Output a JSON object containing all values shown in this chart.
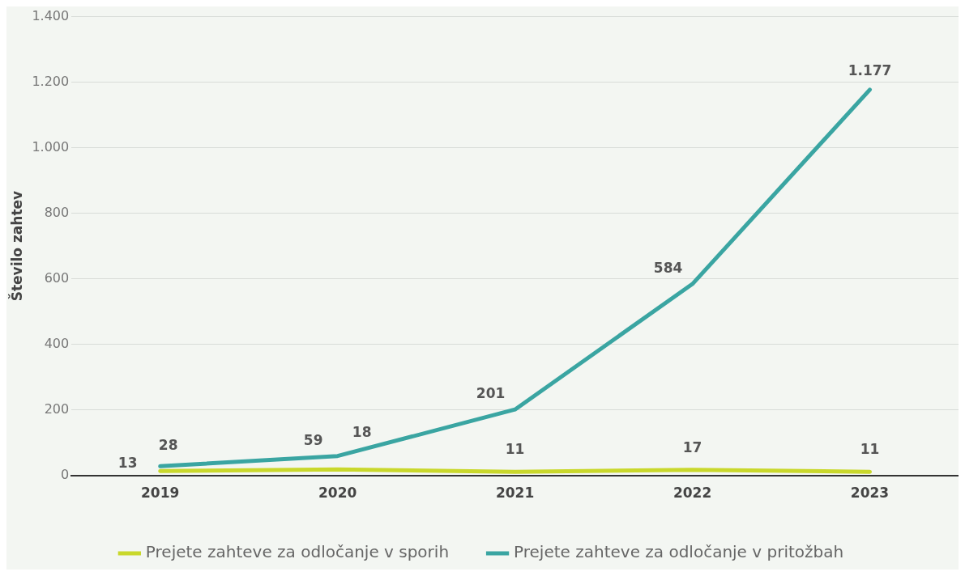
{
  "chart_data": {
    "type": "line",
    "ylabel": "Število zahtev",
    "categories": [
      "2019",
      "2020",
      "2021",
      "2022",
      "2023"
    ],
    "series": [
      {
        "name": "Prejete zahteve za odločanje v sporih",
        "color": "#c9d82c",
        "values": [
          13,
          18,
          11,
          17,
          11
        ],
        "value_labels": [
          "13",
          "18",
          "11",
          "17",
          "11"
        ]
      },
      {
        "name": "Prejete zahteve za odločanje v pritožbah",
        "color": "#3aa5a2",
        "values": [
          28,
          59,
          201,
          584,
          1177
        ],
        "value_labels": [
          "28",
          "59",
          "201",
          "584",
          "1.177"
        ]
      }
    ],
    "ylim": [
      0,
      1400
    ],
    "yticks": [
      {
        "value": 0,
        "label": "0"
      },
      {
        "value": 200,
        "label": "200"
      },
      {
        "value": 400,
        "label": "400"
      },
      {
        "value": 600,
        "label": "600"
      },
      {
        "value": 800,
        "label": "800"
      },
      {
        "value": 1000,
        "label": "1.000"
      },
      {
        "value": 1200,
        "label": "1.200"
      },
      {
        "value": 1400,
        "label": "1.400"
      }
    ],
    "grid": "y",
    "legend": "bottom",
    "marker": "none",
    "line_style": "solid"
  }
}
